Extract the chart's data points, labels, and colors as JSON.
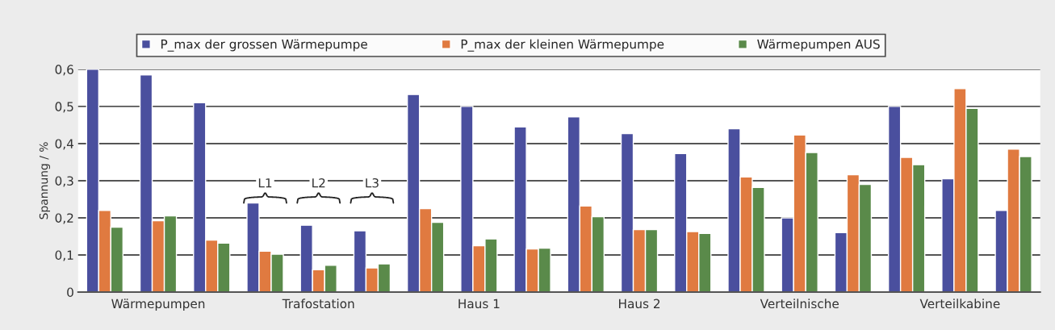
{
  "chart_data": {
    "type": "bar",
    "ylabel": "Spannung / %",
    "categories": [
      null,
      "Wärmepumpen",
      null,
      null,
      "Trafostation",
      null,
      null,
      "Haus 1",
      null,
      null,
      "Haus 2",
      null,
      null,
      "Verteilnische",
      null,
      null,
      "Verteilkabine",
      null
    ],
    "series": [
      {
        "name": "P_max der grossen Wärmepumpe",
        "color": "#4a4f9e",
        "values": [
          0.6,
          0.585,
          0.51,
          0.24,
          0.18,
          0.165,
          0.532,
          0.5,
          0.445,
          0.472,
          0.427,
          0.373,
          0.44,
          0.2,
          0.16,
          0.5,
          0.305,
          0.22
        ]
      },
      {
        "name": "P_max der kleinen Wärmepumpe",
        "color": "#e07a40",
        "values": [
          0.22,
          0.192,
          0.14,
          0.11,
          0.06,
          0.065,
          0.225,
          0.125,
          0.116,
          0.232,
          0.168,
          0.163,
          0.31,
          0.423,
          0.316,
          0.363,
          0.548,
          0.385
        ]
      },
      {
        "name": "Wärmepumpen AUS",
        "color": "#5a8a4a",
        "values": [
          0.175,
          0.205,
          0.132,
          0.102,
          0.072,
          0.076,
          0.188,
          0.143,
          0.118,
          0.203,
          0.168,
          0.158,
          0.282,
          0.376,
          0.29,
          0.343,
          0.495,
          0.365
        ]
      }
    ],
    "ylim": [
      0,
      0.6
    ],
    "yticks": [
      0,
      {
        "value": 0.1,
        "label": "0,1"
      },
      {
        "value": 0.2,
        "label": "0,2"
      },
      {
        "value": 0.3,
        "label": "0,3"
      },
      {
        "value": 0.4,
        "label": "0,4"
      },
      {
        "value": 0.5,
        "label": "0,5"
      },
      {
        "value": 0.6,
        "label": "0,6"
      }
    ],
    "grid": "y",
    "legend": "top",
    "annotations": [
      "L1",
      "L2",
      "L3"
    ]
  }
}
